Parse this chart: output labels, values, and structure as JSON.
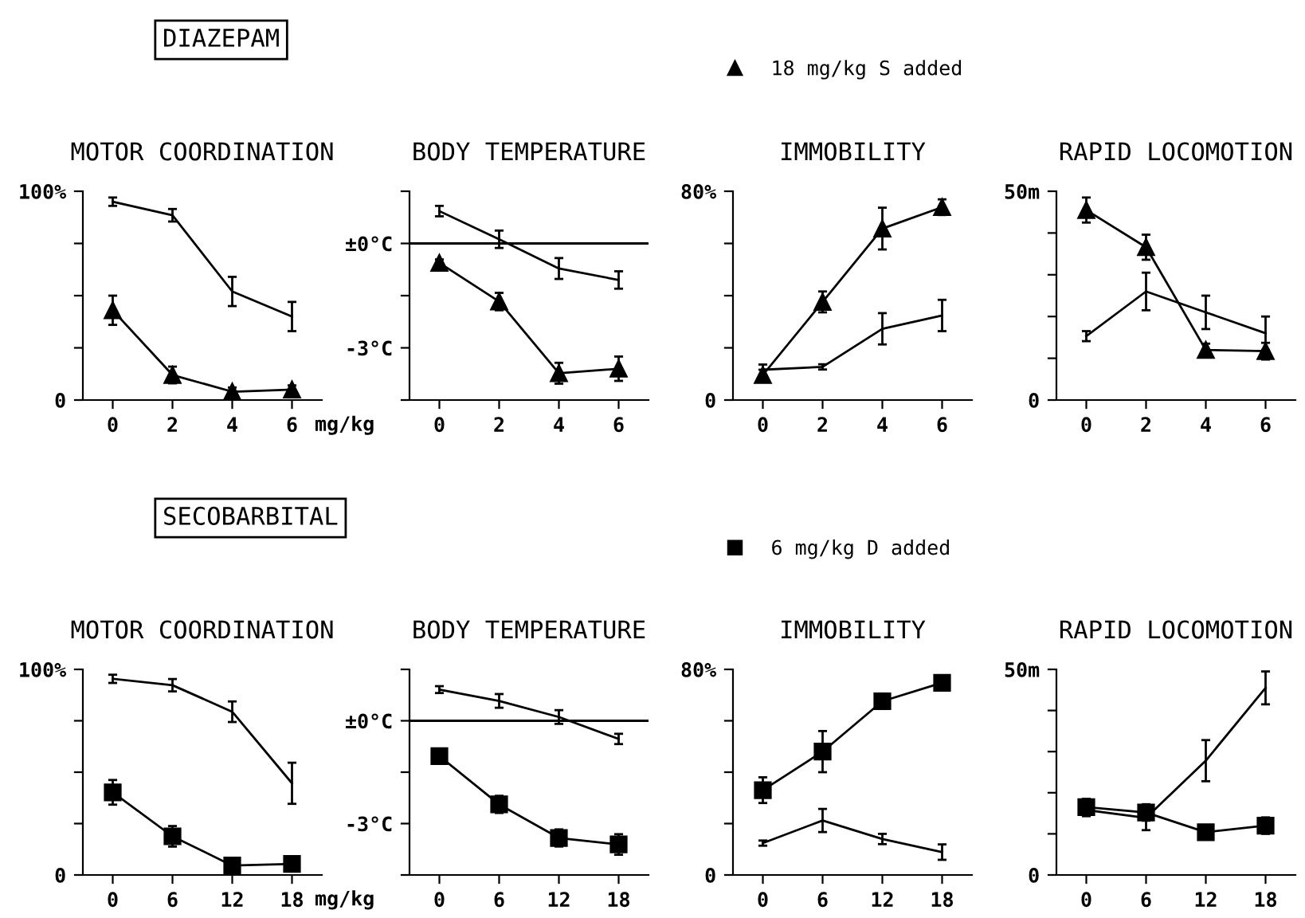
{
  "chart_data": [
    {
      "type": "line",
      "title": "MOTOR COORDINATION",
      "xlabel": "mg/kg",
      "annotations": [
        "DIAZEPAM"
      ],
      "x": [
        0,
        2,
        4,
        6
      ],
      "xlim": [
        -1,
        7
      ],
      "xticks": [
        0,
        2,
        4,
        6
      ],
      "ylim": [
        0,
        100
      ],
      "yticks": [
        {
          "value": 0,
          "label": "0"
        },
        {
          "value": 25,
          "label": null
        },
        {
          "value": 50,
          "label": null
        },
        {
          "value": 75,
          "label": null
        },
        {
          "value": 100,
          "label": "100%"
        }
      ],
      "grid": false,
      "legend": false,
      "series": [
        {
          "color": "#000000",
          "marker": "none",
          "values": [
            95,
            88.5,
            52,
            40
          ],
          "errors": [
            2,
            3,
            7,
            7
          ]
        },
        {
          "color": "#000000",
          "marker": "triangle",
          "values": [
            43,
            12,
            4,
            5
          ],
          "errors": [
            7,
            4,
            2,
            2
          ]
        }
      ]
    },
    {
      "type": "line",
      "title": "BODY TEMPERATURE",
      "x": [
        0,
        2,
        4,
        6
      ],
      "xlim": [
        -1,
        7
      ],
      "xticks": [
        0,
        2,
        4,
        6
      ],
      "ylim": [
        -4.5,
        1.5
      ],
      "yticks": [
        {
          "value": -4.5,
          "label": null
        },
        {
          "value": -3,
          "label": "-3°C"
        },
        {
          "value": -1.5,
          "label": null
        },
        {
          "value": 0,
          "label": "±0°C"
        },
        {
          "value": 1.5,
          "label": null
        }
      ],
      "grid": false,
      "legend": false,
      "ref_lines": [
        {
          "axis": "y",
          "value": 0,
          "color": "#000000"
        }
      ],
      "series": [
        {
          "color": "#000000",
          "marker": "none",
          "values": [
            0.93,
            0.12,
            -0.72,
            -1.05
          ],
          "errors": [
            0.15,
            0.25,
            0.3,
            0.25
          ]
        },
        {
          "color": "#000000",
          "marker": "triangle",
          "values": [
            -0.56,
            -1.67,
            -3.73,
            -3.6
          ],
          "errors": [
            0.1,
            0.25,
            0.3,
            0.35
          ]
        }
      ]
    },
    {
      "type": "line",
      "title": "IMMOBILITY",
      "x": [
        0,
        2,
        4,
        6
      ],
      "xlim": [
        -1,
        7
      ],
      "xticks": [
        0,
        2,
        4,
        6
      ],
      "ylim": [
        0,
        80
      ],
      "yticks": [
        {
          "value": 0,
          "label": "0"
        },
        {
          "value": 20,
          "label": null
        },
        {
          "value": 40,
          "label": null
        },
        {
          "value": 60,
          "label": null
        },
        {
          "value": 80,
          "label": "80%"
        }
      ],
      "grid": false,
      "legend": "top",
      "series": [
        {
          "color": "#000000",
          "marker": "none",
          "values": [
            11.6,
            12.7,
            27.3,
            32.4
          ],
          "errors": [
            2,
            1,
            6,
            6
          ]
        },
        {
          "name": "18 mg/kg S added",
          "color": "#000000",
          "marker": "triangle",
          "values": [
            9.6,
            37.6,
            65.7,
            73.9
          ],
          "errors": [
            2,
            4,
            8,
            3
          ]
        }
      ]
    },
    {
      "type": "line",
      "title": "RAPID LOCOMOTION",
      "x": [
        0,
        2,
        4,
        6
      ],
      "xlim": [
        -1,
        7
      ],
      "xticks": [
        0,
        2,
        4,
        6
      ],
      "ylim": [
        0,
        50
      ],
      "yticks": [
        {
          "value": 0,
          "label": "0"
        },
        {
          "value": 10,
          "label": null
        },
        {
          "value": 20,
          "label": null
        },
        {
          "value": 30,
          "label": null
        },
        {
          "value": 40,
          "label": null
        },
        {
          "value": 50,
          "label": "50m"
        }
      ],
      "grid": false,
      "legend": false,
      "series": [
        {
          "color": "#000000",
          "marker": "none",
          "values": [
            15.3,
            26,
            21,
            16
          ],
          "errors": [
            1.2,
            4.5,
            4,
            4
          ]
        },
        {
          "color": "#000000",
          "marker": "triangle",
          "values": [
            45.5,
            36.6,
            12,
            11.7
          ],
          "errors": [
            3,
            3,
            1.5,
            2
          ]
        }
      ]
    },
    {
      "type": "line",
      "title": "MOTOR COORDINATION",
      "xlabel": "mg/kg",
      "annotations": [
        "SECOBARBITAL"
      ],
      "x": [
        0,
        6,
        12,
        18
      ],
      "xlim": [
        -3,
        21
      ],
      "xticks": [
        0,
        6,
        12,
        18
      ],
      "ylim": [
        0,
        100
      ],
      "yticks": [
        {
          "value": 0,
          "label": "0"
        },
        {
          "value": 25,
          "label": null
        },
        {
          "value": 50,
          "label": null
        },
        {
          "value": 75,
          "label": null
        },
        {
          "value": 100,
          "label": "100%"
        }
      ],
      "grid": false,
      "legend": false,
      "series": [
        {
          "color": "#000000",
          "marker": "none",
          "values": [
            95.4,
            92.3,
            79.4,
            44.6
          ],
          "errors": [
            2,
            3,
            5,
            10
          ]
        },
        {
          "color": "#000000",
          "marker": "square",
          "values": [
            40.2,
            18.8,
            4.6,
            5.4
          ],
          "errors": [
            6,
            5,
            2,
            2
          ]
        }
      ]
    },
    {
      "type": "line",
      "title": "BODY TEMPERATURE",
      "x": [
        0,
        6,
        12,
        18
      ],
      "xlim": [
        -3,
        21
      ],
      "xticks": [
        0,
        6,
        12,
        18
      ],
      "ylim": [
        -4.5,
        1.5
      ],
      "yticks": [
        {
          "value": -4.5,
          "label": null
        },
        {
          "value": -3,
          "label": "-3°C"
        },
        {
          "value": -1.5,
          "label": null
        },
        {
          "value": 0,
          "label": "±0°C"
        },
        {
          "value": 1.5,
          "label": null
        }
      ],
      "grid": false,
      "legend": false,
      "ref_lines": [
        {
          "axis": "y",
          "value": 0,
          "color": "#000000"
        }
      ],
      "series": [
        {
          "color": "#000000",
          "marker": "none",
          "values": [
            0.91,
            0.58,
            0.11,
            -0.53
          ],
          "errors": [
            0.1,
            0.2,
            0.2,
            0.15
          ]
        },
        {
          "color": "#000000",
          "marker": "square",
          "values": [
            -1.03,
            -2.44,
            -3.42,
            -3.61
          ],
          "errors": [
            0.2,
            0.25,
            0.25,
            0.3
          ]
        }
      ]
    },
    {
      "type": "line",
      "title": "IMMOBILITY",
      "x": [
        0,
        6,
        12,
        18
      ],
      "xlim": [
        -3,
        21
      ],
      "xticks": [
        0,
        6,
        12,
        18
      ],
      "ylim": [
        0,
        80
      ],
      "yticks": [
        {
          "value": 0,
          "label": "0"
        },
        {
          "value": 20,
          "label": null
        },
        {
          "value": 40,
          "label": null
        },
        {
          "value": 60,
          "label": null
        },
        {
          "value": 80,
          "label": "80%"
        }
      ],
      "grid": false,
      "legend": "top",
      "series": [
        {
          "color": "#000000",
          "marker": "none",
          "values": [
            12.4,
            21.2,
            14,
            8.9
          ],
          "errors": [
            1,
            4.5,
            2,
            3
          ]
        },
        {
          "name": "6 mg/kg D added",
          "color": "#000000",
          "marker": "square",
          "values": [
            33,
            48,
            67.6,
            74.8
          ],
          "errors": [
            5,
            8,
            3,
            2
          ]
        }
      ]
    },
    {
      "type": "line",
      "title": "RAPID LOCOMOTION",
      "x": [
        0,
        6,
        12,
        18
      ],
      "xlim": [
        -3,
        21
      ],
      "xticks": [
        0,
        6,
        12,
        18
      ],
      "ylim": [
        0,
        50
      ],
      "yticks": [
        {
          "value": 0,
          "label": "0"
        },
        {
          "value": 10,
          "label": null
        },
        {
          "value": 20,
          "label": null
        },
        {
          "value": 30,
          "label": null
        },
        {
          "value": 40,
          "label": null
        },
        {
          "value": 50,
          "label": "50m"
        }
      ],
      "grid": false,
      "legend": false,
      "series": [
        {
          "color": "#000000",
          "marker": "none",
          "values": [
            15.8,
            13.9,
            27.8,
            45.5
          ],
          "errors": [
            1.5,
            3,
            5,
            4
          ]
        },
        {
          "color": "#000000",
          "marker": "square",
          "values": [
            16.5,
            15.2,
            10.4,
            12
          ],
          "errors": [
            2,
            2,
            1,
            2
          ]
        }
      ]
    }
  ]
}
